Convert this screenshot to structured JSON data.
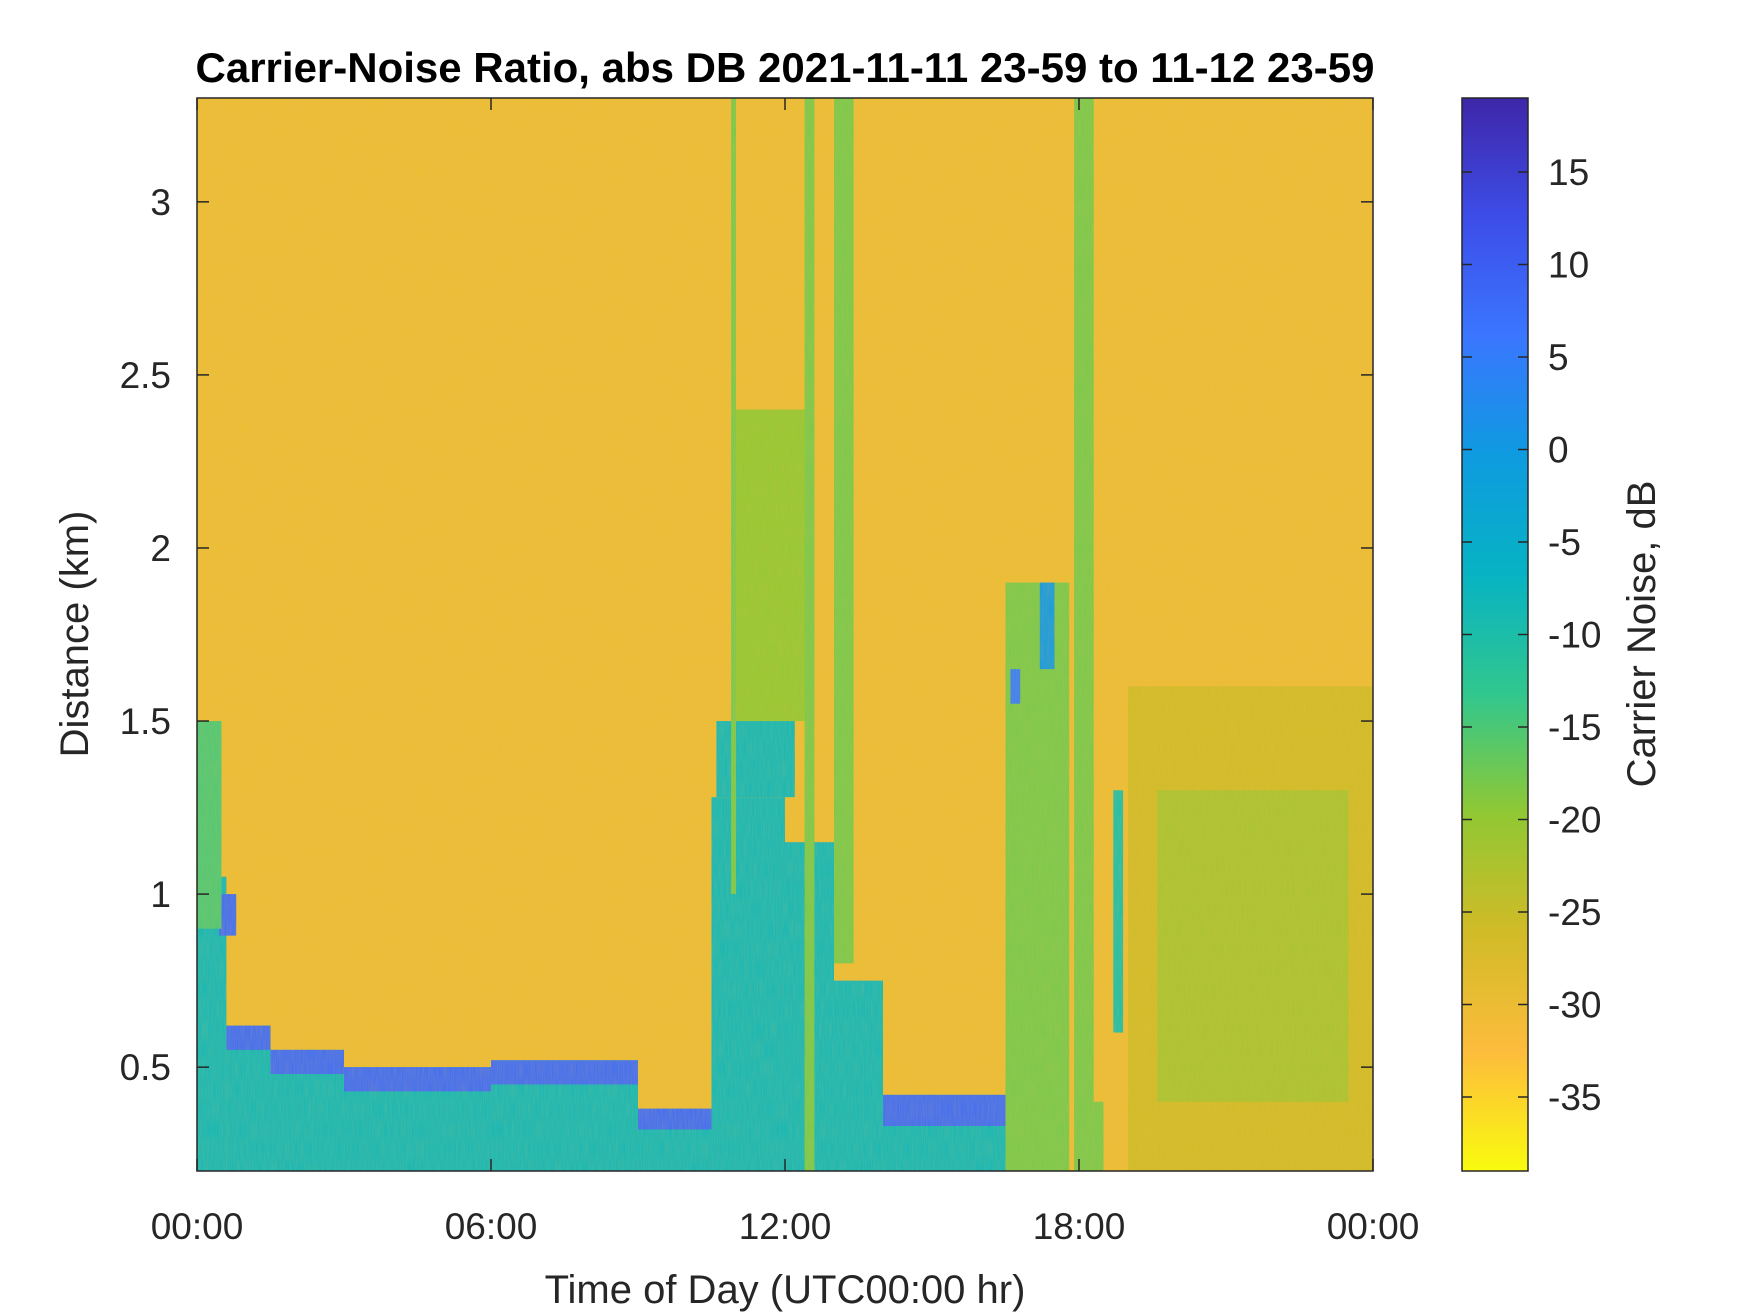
{
  "chart_data": {
    "type": "heatmap",
    "title": "Carrier-Noise Ratio, abs DB 2021-11-11 23-59 to 11-12 23-59",
    "xlabel": "Time of Day (UTC00:00 hr)",
    "ylabel": "Distance (km)",
    "colorbar_label": "Carrier Noise, dB",
    "x_ticks": [
      {
        "value": 0,
        "label": "00:00"
      },
      {
        "value": 6,
        "label": "06:00"
      },
      {
        "value": 12,
        "label": "12:00"
      },
      {
        "value": 18,
        "label": "18:00"
      },
      {
        "value": 24,
        "label": "00:00"
      }
    ],
    "y_ticks": [
      {
        "value": 0.5,
        "label": "0.5"
      },
      {
        "value": 1,
        "label": "1"
      },
      {
        "value": 1.5,
        "label": "1.5"
      },
      {
        "value": 2,
        "label": "2"
      },
      {
        "value": 2.5,
        "label": "2.5"
      },
      {
        "value": 3,
        "label": "3"
      }
    ],
    "colorbar_ticks": [
      {
        "value": 15,
        "label": "15"
      },
      {
        "value": 10,
        "label": "10"
      },
      {
        "value": 5,
        "label": "5"
      },
      {
        "value": 0,
        "label": "0"
      },
      {
        "value": -5,
        "label": "-5"
      },
      {
        "value": -10,
        "label": "-10"
      },
      {
        "value": -15,
        "label": "-15"
      },
      {
        "value": -20,
        "label": "-20"
      },
      {
        "value": -25,
        "label": "-25"
      },
      {
        "value": -30,
        "label": "-30"
      },
      {
        "value": -35,
        "label": "-35"
      }
    ],
    "xlim": [
      0,
      24
    ],
    "ylim": [
      0.2,
      3.3
    ],
    "clim": [
      -39,
      19
    ],
    "background_value": -30,
    "colormap": [
      "#f9fb0e",
      "#fdbc3c",
      "#d1bb27",
      "#90c833",
      "#31c78e",
      "#07b3c3",
      "#0e9be0",
      "#3a76ff",
      "#3d4de8",
      "#3e26a8"
    ],
    "regions": [
      {
        "x0": 0.0,
        "x1": 0.6,
        "y0": 0.2,
        "y1": 1.05,
        "value": -8
      },
      {
        "x0": 0.45,
        "x1": 0.8,
        "y0": 0.88,
        "y1": 1.0,
        "value": 8
      },
      {
        "x0": 0.0,
        "x1": 0.12,
        "y0": 0.95,
        "y1": 1.2,
        "value": 8
      },
      {
        "x0": 0.0,
        "x1": 0.5,
        "y0": 0.9,
        "y1": 1.5,
        "value": -15
      },
      {
        "x0": 0.6,
        "x1": 1.5,
        "y0": 0.2,
        "y1": 0.62,
        "value": -8
      },
      {
        "x0": 1.5,
        "x1": 3.0,
        "y0": 0.2,
        "y1": 0.55,
        "value": -8
      },
      {
        "x0": 3.0,
        "x1": 6.0,
        "y0": 0.2,
        "y1": 0.5,
        "value": -8
      },
      {
        "x0": 6.0,
        "x1": 9.0,
        "y0": 0.2,
        "y1": 0.52,
        "value": -8
      },
      {
        "x0": 9.0,
        "x1": 10.5,
        "y0": 0.2,
        "y1": 0.38,
        "value": -8
      },
      {
        "x0": 0.6,
        "x1": 1.5,
        "y0": 0.55,
        "y1": 0.62,
        "value": 8
      },
      {
        "x0": 1.5,
        "x1": 3.0,
        "y0": 0.48,
        "y1": 0.55,
        "value": 8
      },
      {
        "x0": 3.0,
        "x1": 6.0,
        "y0": 0.43,
        "y1": 0.5,
        "value": 8
      },
      {
        "x0": 6.0,
        "x1": 9.0,
        "y0": 0.45,
        "y1": 0.52,
        "value": 8
      },
      {
        "x0": 9.0,
        "x1": 10.5,
        "y0": 0.32,
        "y1": 0.38,
        "value": 8
      },
      {
        "x0": 10.5,
        "x1": 12.0,
        "y0": 0.2,
        "y1": 1.28,
        "value": -8
      },
      {
        "x0": 12.0,
        "x1": 13.0,
        "y0": 0.2,
        "y1": 1.15,
        "value": -8
      },
      {
        "x0": 13.0,
        "x1": 14.0,
        "y0": 0.2,
        "y1": 0.75,
        "value": -8
      },
      {
        "x0": 14.0,
        "x1": 16.5,
        "y0": 0.2,
        "y1": 0.42,
        "value": -8
      },
      {
        "x0": 14.0,
        "x1": 16.5,
        "y0": 0.33,
        "y1": 0.42,
        "value": 8
      },
      {
        "x0": 10.6,
        "x1": 12.2,
        "y0": 1.28,
        "y1": 1.5,
        "value": -8
      },
      {
        "x0": 11.0,
        "x1": 12.6,
        "y0": 1.5,
        "y1": 2.4,
        "value": -20
      },
      {
        "x0": 10.9,
        "x1": 11.0,
        "y0": 1.0,
        "y1": 3.3,
        "value": -18
      },
      {
        "x0": 12.4,
        "x1": 12.6,
        "y0": 0.2,
        "y1": 3.3,
        "value": -18
      },
      {
        "x0": 13.0,
        "x1": 13.4,
        "y0": 0.8,
        "y1": 3.3,
        "value": -18
      },
      {
        "x0": 16.5,
        "x1": 17.8,
        "y0": 0.2,
        "y1": 1.9,
        "value": -18
      },
      {
        "x0": 16.6,
        "x1": 16.8,
        "y0": 1.55,
        "y1": 1.65,
        "value": 5
      },
      {
        "x0": 17.2,
        "x1": 17.5,
        "y0": 1.65,
        "y1": 1.9,
        "value": 0
      },
      {
        "x0": 17.9,
        "x1": 18.3,
        "y0": 0.2,
        "y1": 3.3,
        "value": -18
      },
      {
        "x0": 18.3,
        "x1": 18.5,
        "y0": 0.2,
        "y1": 0.4,
        "value": -18
      },
      {
        "x0": 18.7,
        "x1": 18.9,
        "y0": 0.6,
        "y1": 1.3,
        "value": -10
      },
      {
        "x0": 19.0,
        "x1": 24.0,
        "y0": 0.2,
        "y1": 1.6,
        "value": -26
      },
      {
        "x0": 19.6,
        "x1": 23.5,
        "y0": 0.4,
        "y1": 1.3,
        "value": -22
      }
    ]
  }
}
